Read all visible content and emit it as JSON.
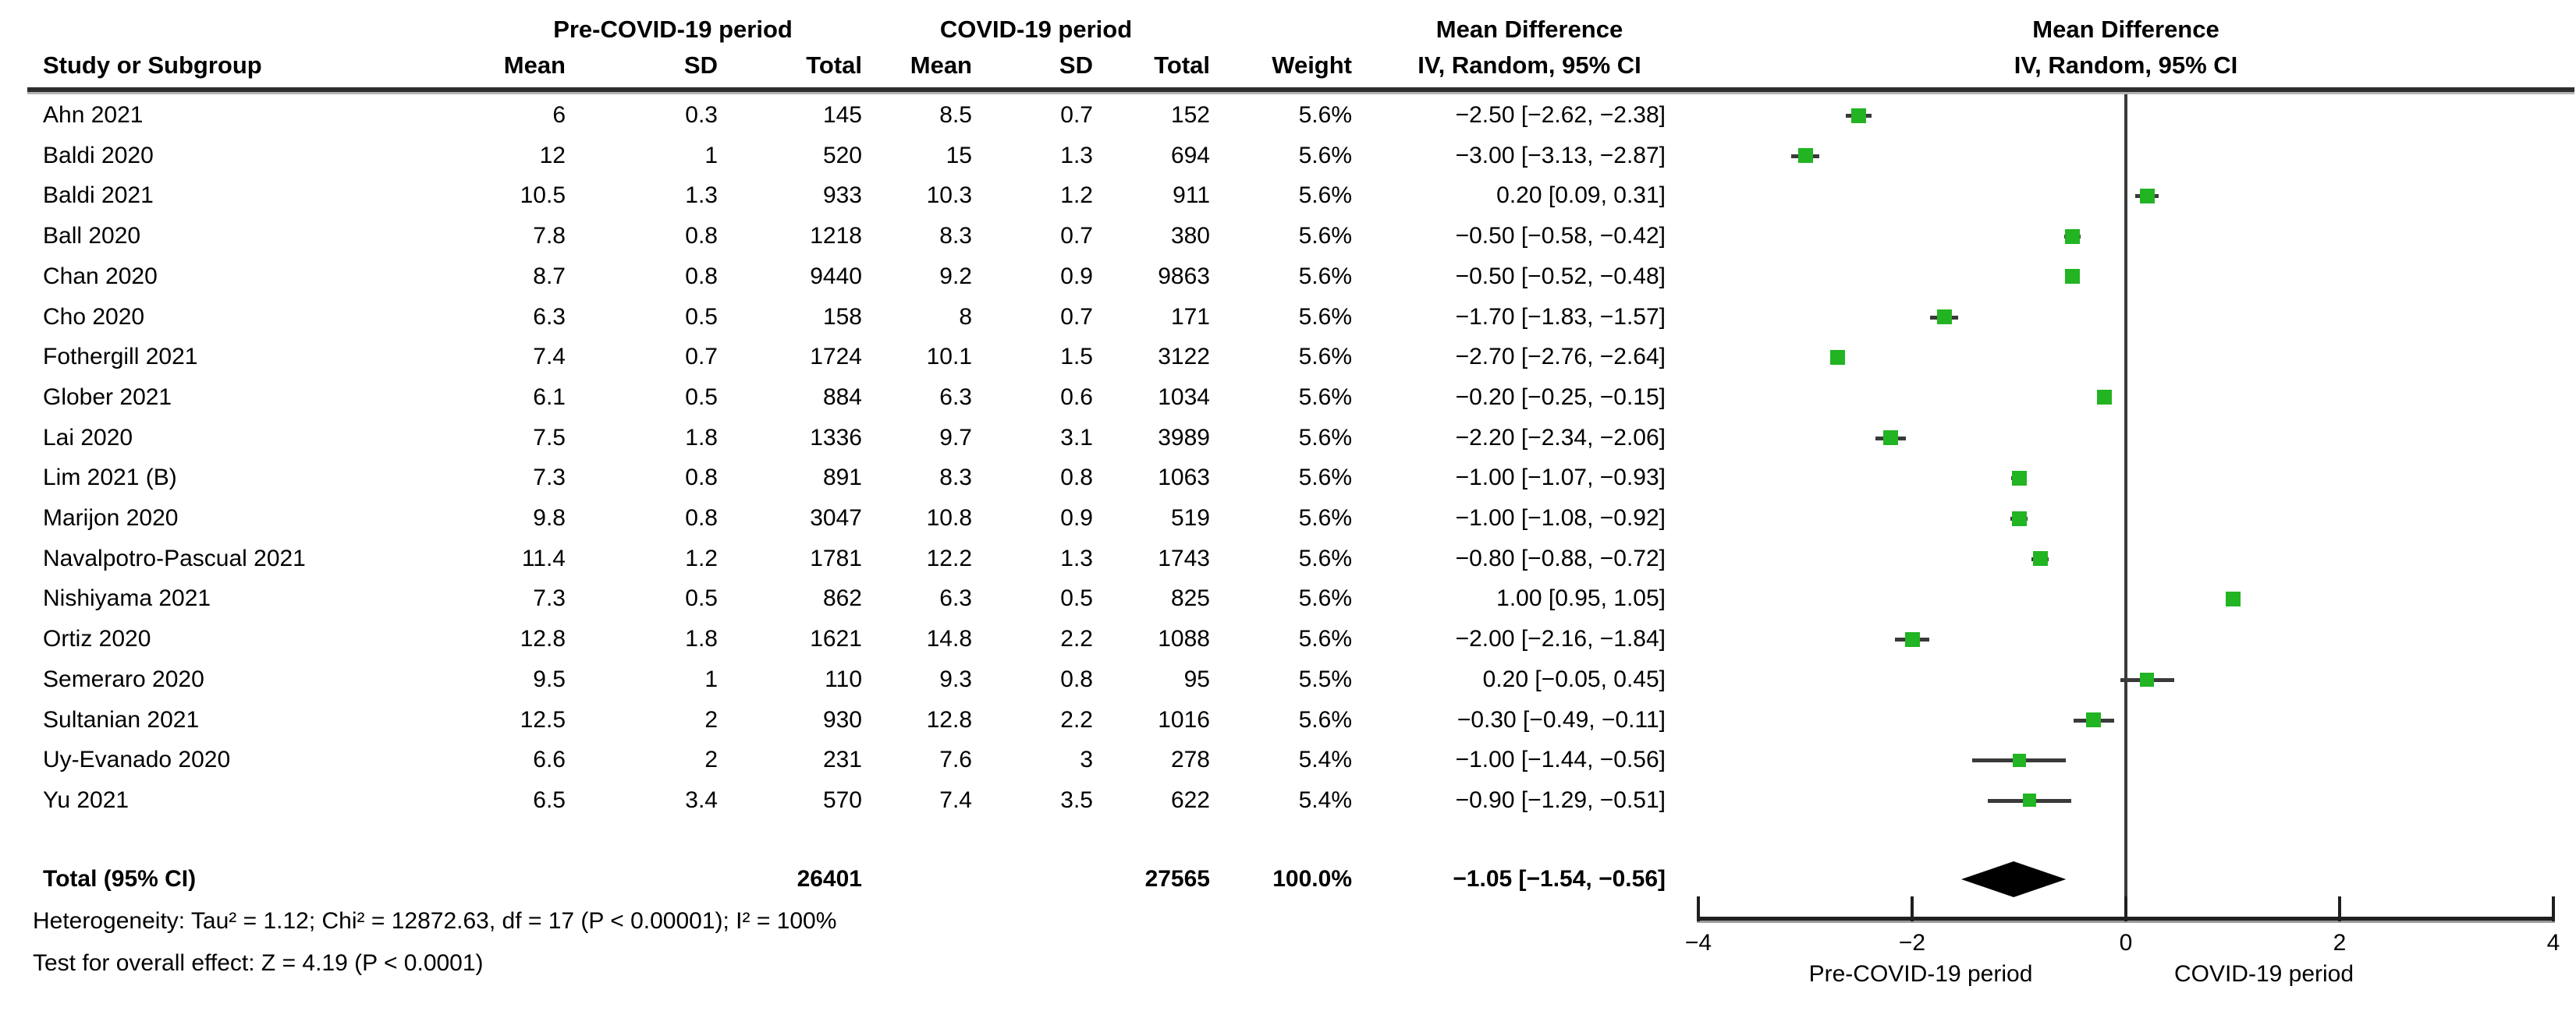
{
  "header": {
    "group1": "Pre-COVID-19 period",
    "group2": "COVID-19 period",
    "study_col": "Study or Subgroup",
    "mean": "Mean",
    "sd": "SD",
    "total": "Total",
    "weight": "Weight",
    "md_title": "Mean Difference",
    "md_subtitle": "IV, Random, 95% CI"
  },
  "colors": {
    "marker_green": "#22b422",
    "ci_line": "#3a3a3a",
    "axis": "#1f1f1f",
    "diamond": "#000000"
  },
  "chart_data": {
    "type": "forest",
    "effect_measure": "Mean Difference",
    "method": "IV, Random, 95% CI",
    "x_axis": {
      "min": -4,
      "max": 4,
      "tick_values": [
        -4,
        -2,
        0,
        2,
        4
      ],
      "tick_labels": [
        "−4",
        "−2",
        "0",
        "2",
        "4"
      ],
      "left_caption": "Pre-COVID-19 period",
      "right_caption": "COVID-19 period"
    },
    "studies": [
      {
        "name": "Ahn 2021",
        "pre_mean": "6",
        "pre_sd": "0.3",
        "pre_total": "145",
        "cov_mean": "8.5",
        "cov_sd": "0.7",
        "cov_total": "152",
        "weight": "5.6%",
        "weight_val": 5.6,
        "md": -2.5,
        "ci_low": -2.62,
        "ci_high": -2.38,
        "ci_text": "−2.50 [−2.62, −2.38]"
      },
      {
        "name": "Baldi 2020",
        "pre_mean": "12",
        "pre_sd": "1",
        "pre_total": "520",
        "cov_mean": "15",
        "cov_sd": "1.3",
        "cov_total": "694",
        "weight": "5.6%",
        "weight_val": 5.6,
        "md": -3.0,
        "ci_low": -3.13,
        "ci_high": -2.87,
        "ci_text": "−3.00 [−3.13, −2.87]"
      },
      {
        "name": "Baldi 2021",
        "pre_mean": "10.5",
        "pre_sd": "1.3",
        "pre_total": "933",
        "cov_mean": "10.3",
        "cov_sd": "1.2",
        "cov_total": "911",
        "weight": "5.6%",
        "weight_val": 5.6,
        "md": 0.2,
        "ci_low": 0.09,
        "ci_high": 0.31,
        "ci_text": "0.20 [0.09, 0.31]"
      },
      {
        "name": "Ball 2020",
        "pre_mean": "7.8",
        "pre_sd": "0.8",
        "pre_total": "1218",
        "cov_mean": "8.3",
        "cov_sd": "0.7",
        "cov_total": "380",
        "weight": "5.6%",
        "weight_val": 5.6,
        "md": -0.5,
        "ci_low": -0.58,
        "ci_high": -0.42,
        "ci_text": "−0.50 [−0.58, −0.42]"
      },
      {
        "name": "Chan 2020",
        "pre_mean": "8.7",
        "pre_sd": "0.8",
        "pre_total": "9440",
        "cov_mean": "9.2",
        "cov_sd": "0.9",
        "cov_total": "9863",
        "weight": "5.6%",
        "weight_val": 5.6,
        "md": -0.5,
        "ci_low": -0.52,
        "ci_high": -0.48,
        "ci_text": "−0.50 [−0.52, −0.48]"
      },
      {
        "name": "Cho 2020",
        "pre_mean": "6.3",
        "pre_sd": "0.5",
        "pre_total": "158",
        "cov_mean": "8",
        "cov_sd": "0.7",
        "cov_total": "171",
        "weight": "5.6%",
        "weight_val": 5.6,
        "md": -1.7,
        "ci_low": -1.83,
        "ci_high": -1.57,
        "ci_text": "−1.70 [−1.83, −1.57]"
      },
      {
        "name": "Fothergill 2021",
        "pre_mean": "7.4",
        "pre_sd": "0.7",
        "pre_total": "1724",
        "cov_mean": "10.1",
        "cov_sd": "1.5",
        "cov_total": "3122",
        "weight": "5.6%",
        "weight_val": 5.6,
        "md": -2.7,
        "ci_low": -2.76,
        "ci_high": -2.64,
        "ci_text": "−2.70 [−2.76, −2.64]"
      },
      {
        "name": "Glober 2021",
        "pre_mean": "6.1",
        "pre_sd": "0.5",
        "pre_total": "884",
        "cov_mean": "6.3",
        "cov_sd": "0.6",
        "cov_total": "1034",
        "weight": "5.6%",
        "weight_val": 5.6,
        "md": -0.2,
        "ci_low": -0.25,
        "ci_high": -0.15,
        "ci_text": "−0.20 [−0.25, −0.15]"
      },
      {
        "name": "Lai 2020",
        "pre_mean": "7.5",
        "pre_sd": "1.8",
        "pre_total": "1336",
        "cov_mean": "9.7",
        "cov_sd": "3.1",
        "cov_total": "3989",
        "weight": "5.6%",
        "weight_val": 5.6,
        "md": -2.2,
        "ci_low": -2.34,
        "ci_high": -2.06,
        "ci_text": "−2.20 [−2.34, −2.06]"
      },
      {
        "name": "Lim 2021 (B)",
        "pre_mean": "7.3",
        "pre_sd": "0.8",
        "pre_total": "891",
        "cov_mean": "8.3",
        "cov_sd": "0.8",
        "cov_total": "1063",
        "weight": "5.6%",
        "weight_val": 5.6,
        "md": -1.0,
        "ci_low": -1.07,
        "ci_high": -0.93,
        "ci_text": "−1.00 [−1.07, −0.93]"
      },
      {
        "name": "Marijon 2020",
        "pre_mean": "9.8",
        "pre_sd": "0.8",
        "pre_total": "3047",
        "cov_mean": "10.8",
        "cov_sd": "0.9",
        "cov_total": "519",
        "weight": "5.6%",
        "weight_val": 5.6,
        "md": -1.0,
        "ci_low": -1.08,
        "ci_high": -0.92,
        "ci_text": "−1.00 [−1.08, −0.92]"
      },
      {
        "name": "Navalpotro-Pascual 2021",
        "pre_mean": "11.4",
        "pre_sd": "1.2",
        "pre_total": "1781",
        "cov_mean": "12.2",
        "cov_sd": "1.3",
        "cov_total": "1743",
        "weight": "5.6%",
        "weight_val": 5.6,
        "md": -0.8,
        "ci_low": -0.88,
        "ci_high": -0.72,
        "ci_text": "−0.80 [−0.88, −0.72]"
      },
      {
        "name": "Nishiyama 2021",
        "pre_mean": "7.3",
        "pre_sd": "0.5",
        "pre_total": "862",
        "cov_mean": "6.3",
        "cov_sd": "0.5",
        "cov_total": "825",
        "weight": "5.6%",
        "weight_val": 5.6,
        "md": 1.0,
        "ci_low": 0.95,
        "ci_high": 1.05,
        "ci_text": "1.00 [0.95, 1.05]"
      },
      {
        "name": "Ortiz 2020",
        "pre_mean": "12.8",
        "pre_sd": "1.8",
        "pre_total": "1621",
        "cov_mean": "14.8",
        "cov_sd": "2.2",
        "cov_total": "1088",
        "weight": "5.6%",
        "weight_val": 5.6,
        "md": -2.0,
        "ci_low": -2.16,
        "ci_high": -1.84,
        "ci_text": "−2.00 [−2.16, −1.84]"
      },
      {
        "name": "Semeraro 2020",
        "pre_mean": "9.5",
        "pre_sd": "1",
        "pre_total": "110",
        "cov_mean": "9.3",
        "cov_sd": "0.8",
        "cov_total": "95",
        "weight": "5.5%",
        "weight_val": 5.5,
        "md": 0.2,
        "ci_low": -0.05,
        "ci_high": 0.45,
        "ci_text": "0.20 [−0.05, 0.45]"
      },
      {
        "name": "Sultanian 2021",
        "pre_mean": "12.5",
        "pre_sd": "2",
        "pre_total": "930",
        "cov_mean": "12.8",
        "cov_sd": "2.2",
        "cov_total": "1016",
        "weight": "5.6%",
        "weight_val": 5.6,
        "md": -0.3,
        "ci_low": -0.49,
        "ci_high": -0.11,
        "ci_text": "−0.30 [−0.49, −0.11]"
      },
      {
        "name": "Uy-Evanado 2020",
        "pre_mean": "6.6",
        "pre_sd": "2",
        "pre_total": "231",
        "cov_mean": "7.6",
        "cov_sd": "3",
        "cov_total": "278",
        "weight": "5.4%",
        "weight_val": 5.4,
        "md": -1.0,
        "ci_low": -1.44,
        "ci_high": -0.56,
        "ci_text": "−1.00 [−1.44, −0.56]"
      },
      {
        "name": "Yu 2021",
        "pre_mean": "6.5",
        "pre_sd": "3.4",
        "pre_total": "570",
        "cov_mean": "7.4",
        "cov_sd": "3.5",
        "cov_total": "622",
        "weight": "5.4%",
        "weight_val": 5.4,
        "md": -0.9,
        "ci_low": -1.29,
        "ci_high": -0.51,
        "ci_text": "−0.90 [−1.29, −0.51]"
      }
    ],
    "total": {
      "label": "Total (95% CI)",
      "pre_total": "26401",
      "cov_total": "27565",
      "weight": "100.0%",
      "md": -1.05,
      "ci_low": -1.54,
      "ci_high": -0.56,
      "ci_text": "−1.05 [−1.54, −0.56]"
    },
    "heterogeneity": "Heterogeneity: Tau² = 1.12; Chi² = 12872.63, df = 17 (P < 0.00001); I² = 100%",
    "overall_effect": "Test for overall effect: Z = 4.19 (P < 0.0001)"
  }
}
